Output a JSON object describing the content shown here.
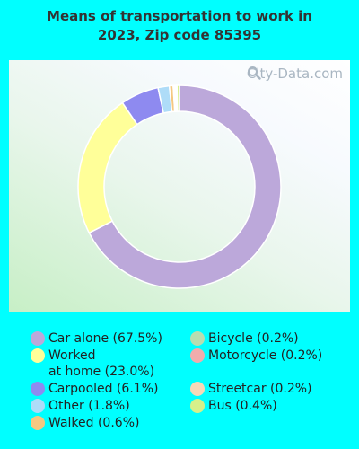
{
  "title_line1": "Means of transportation to work in",
  "title_line2": "2023, Zip code 85395",
  "watermark": "City-Data.com",
  "chart_data": {
    "type": "pie",
    "style": "donut",
    "labels": [
      "Car alone",
      "Worked at home",
      "Carpooled",
      "Other",
      "Walked",
      "Bicycle",
      "Motorcycle",
      "Streetcar",
      "Bus"
    ],
    "values": [
      67.5,
      23.0,
      6.1,
      1.8,
      0.6,
      0.2,
      0.2,
      0.2,
      0.4
    ],
    "colors": [
      "#BCA8DA",
      "#FFFF99",
      "#8E8AF0",
      "#AEDCF8",
      "#F5C882",
      "#B9DDB0",
      "#F0ACAC",
      "#F7D9B8",
      "#D6F08A"
    ]
  },
  "legend": {
    "left": [
      {
        "text_line1": "Car alone (67.5%)",
        "text_line2": "",
        "color": "#BCA8DA"
      },
      {
        "text_line1": "Worked",
        "text_line2": "at home (23.0%)",
        "color": "#FFFF99"
      },
      {
        "text_line1": "Carpooled (6.1%)",
        "text_line2": "",
        "color": "#8E8AF0"
      },
      {
        "text_line1": "Other (1.8%)",
        "text_line2": "",
        "color": "#AEDCF8"
      },
      {
        "text_line1": "Walked (0.6%)",
        "text_line2": "",
        "color": "#F5C882"
      }
    ],
    "right": [
      {
        "text_line1": "Bicycle (0.2%)",
        "text_line2": "",
        "color": "#B9DDB0"
      },
      {
        "text_line1": "Motorcycle (0.2%)",
        "text_line2": "",
        "color": "#F0ACAC"
      },
      {
        "text_line1": "Streetcar (0.2%)",
        "text_line2": "",
        "color": "#F7D9B8"
      },
      {
        "text_line1": "Bus (0.4%)",
        "text_line2": "",
        "color": "#D6F08A"
      }
    ]
  }
}
